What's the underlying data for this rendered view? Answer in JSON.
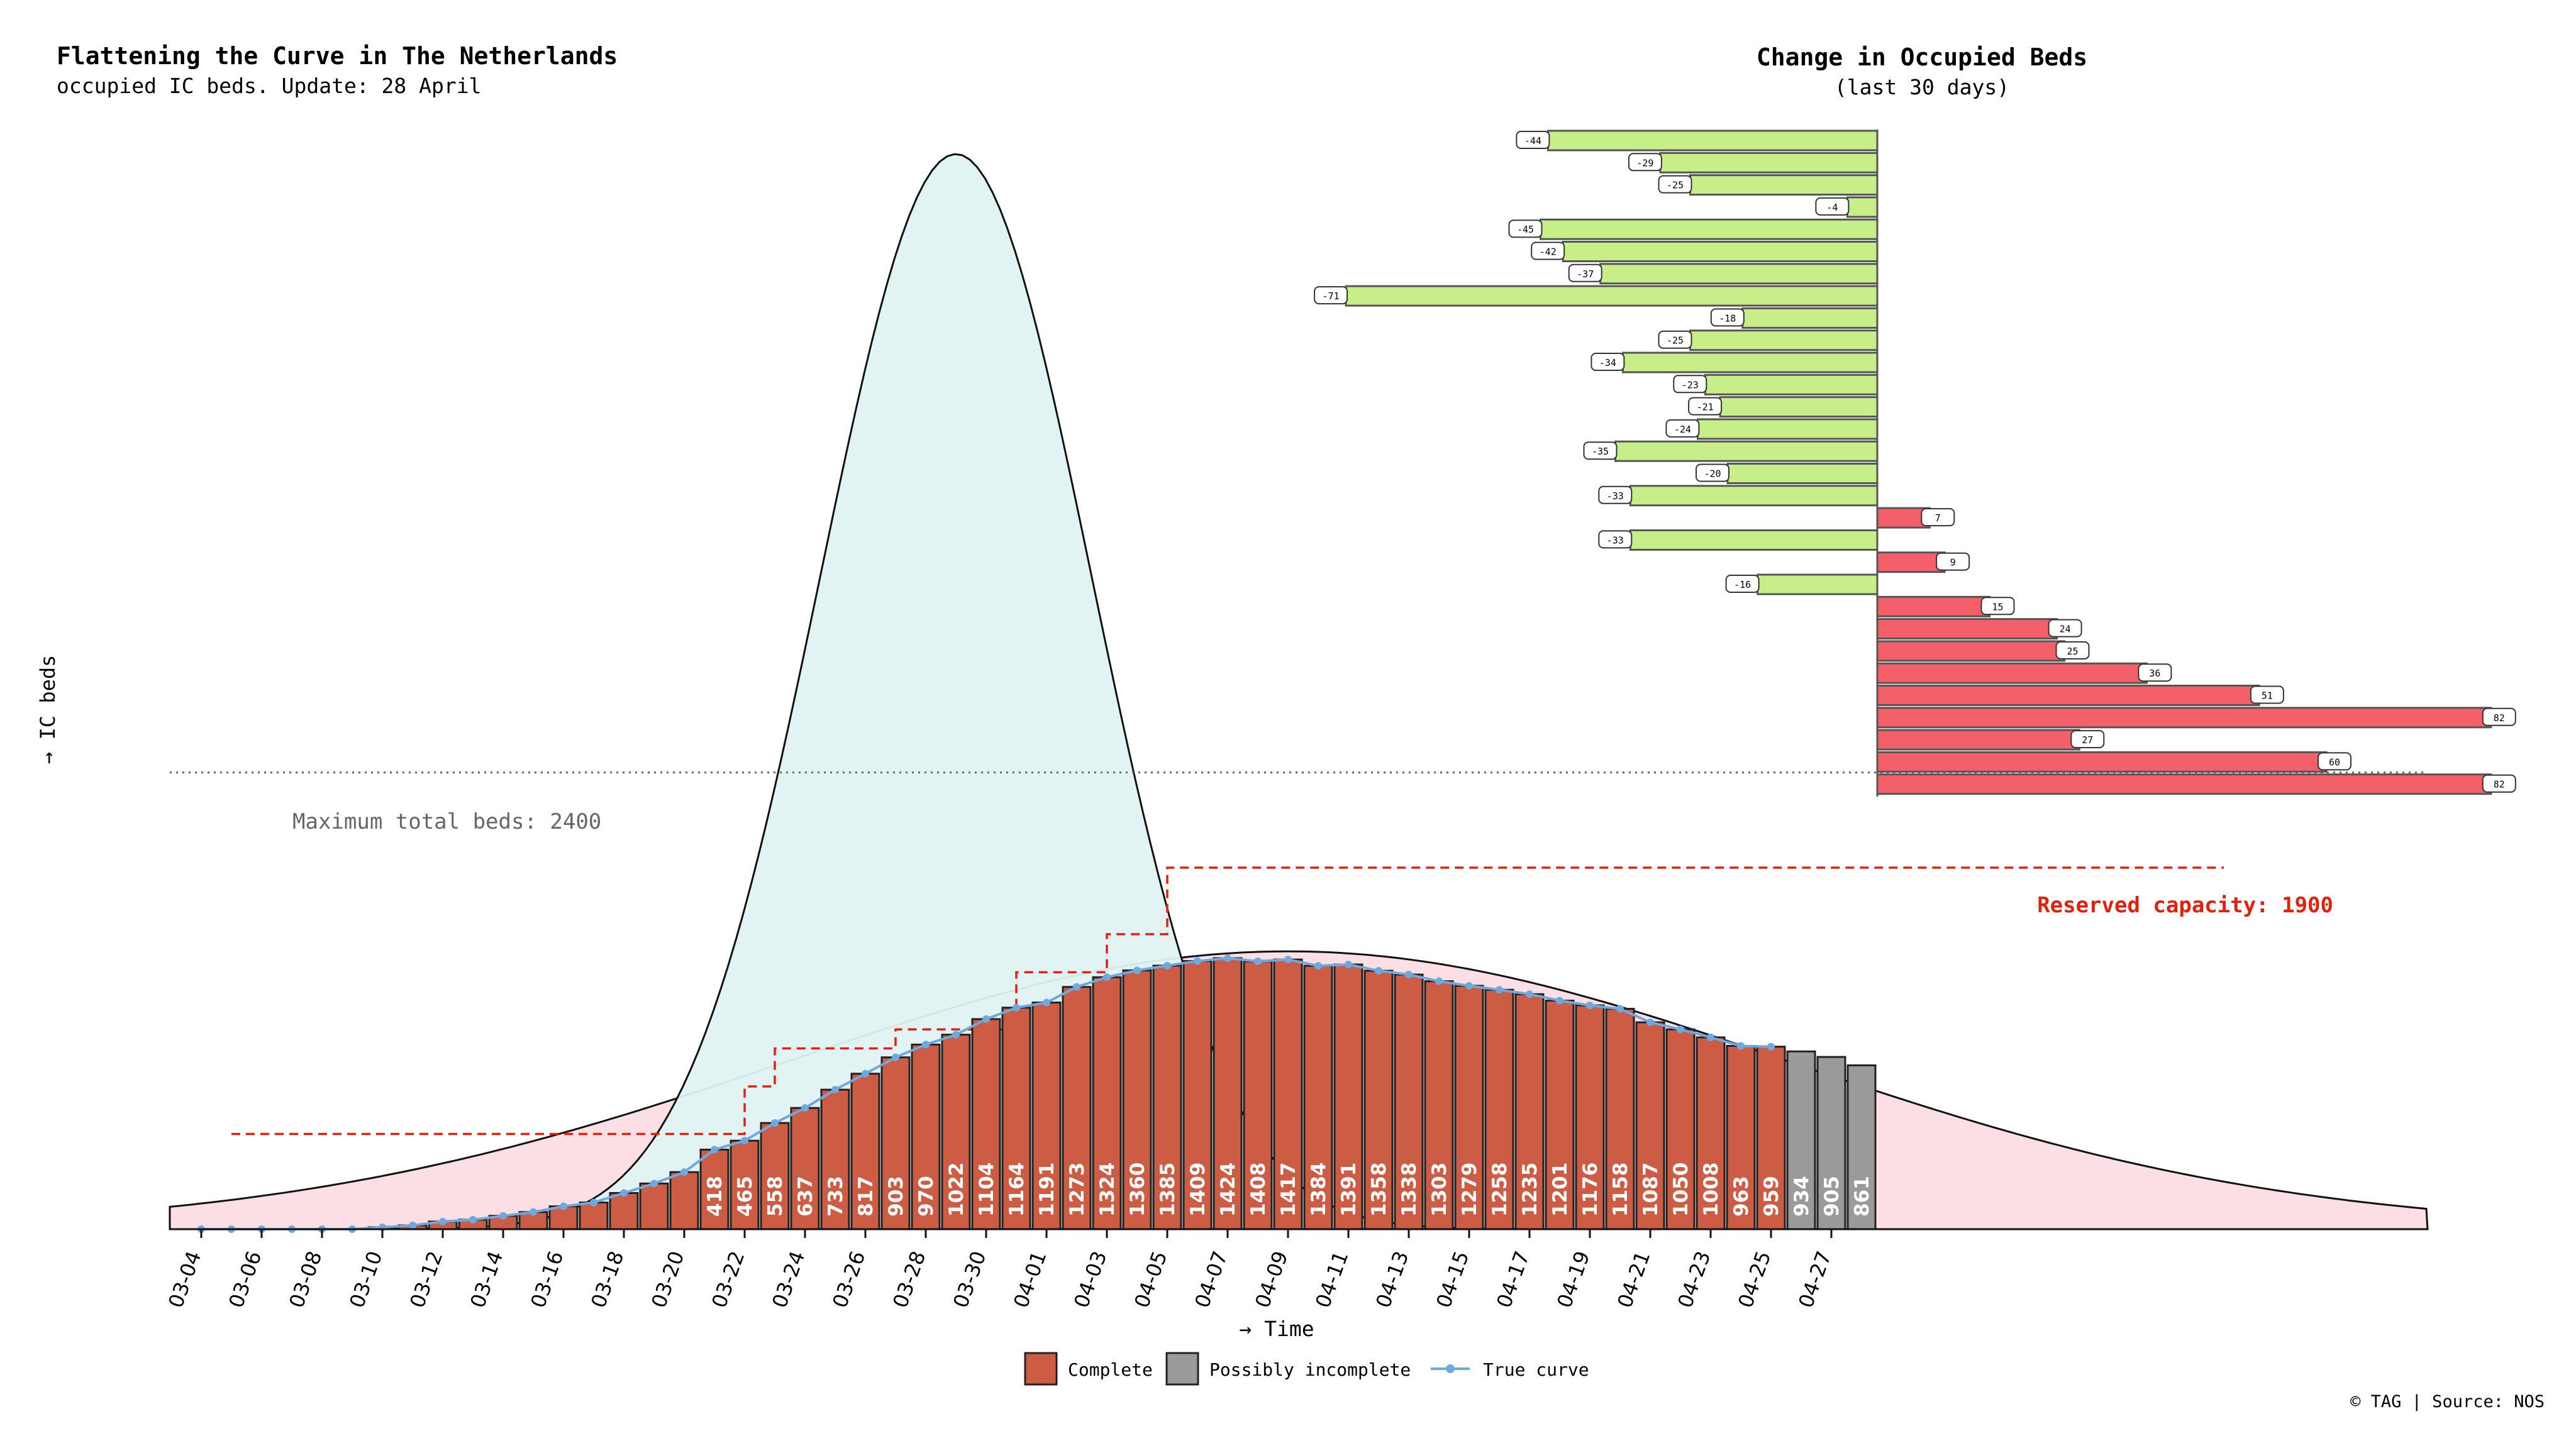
{
  "chart_data": [
    {
      "type": "bar",
      "title": "Flattening the Curve in The Netherlands",
      "subtitle": "occupied IC beds. Update: 28 April",
      "xlabel": "→ Time",
      "ylabel": "→ IC beds",
      "ylim": [
        0,
        5650
      ],
      "colors": {
        "complete": "#cd5c45",
        "incomplete": "#9a9a9a",
        "true_curve": "#6fa8dc",
        "tall_curve": "#dff3f2",
        "flat_curve": "#fcdfe4",
        "reserved": "#e0210f"
      },
      "max_beds_label": "Maximum total beds: 2400",
      "max_beds_value": 2400,
      "reserved_label": "Reserved capacity: 1900",
      "reserved_value": 1900,
      "legend": {
        "position": "bottom-center",
        "entries": [
          "Complete",
          "Possibly incomplete",
          "True curve"
        ]
      },
      "tick_labels": [
        "03-04",
        "03-06",
        "03-08",
        "03-10",
        "03-12",
        "03-14",
        "03-16",
        "03-18",
        "03-20",
        "03-22",
        "03-24",
        "03-26",
        "03-28",
        "03-30",
        "04-01",
        "04-03",
        "04-05",
        "04-07",
        "04-09",
        "04-11",
        "04-13",
        "04-15",
        "04-17",
        "04-19",
        "04-21",
        "04-23",
        "04-25",
        "04-27"
      ],
      "dates": [
        "03-04",
        "03-05",
        "03-06",
        "03-07",
        "03-08",
        "03-09",
        "03-10",
        "03-11",
        "03-12",
        "03-13",
        "03-14",
        "03-15",
        "03-16",
        "03-17",
        "03-18",
        "03-19",
        "03-20",
        "03-21",
        "03-22",
        "03-23",
        "03-24",
        "03-25",
        "03-26",
        "03-27",
        "03-28",
        "03-29",
        "03-30",
        "03-31",
        "04-01",
        "04-02",
        "04-03",
        "04-04",
        "04-05",
        "04-06",
        "04-07",
        "04-08",
        "04-09",
        "04-10",
        "04-11",
        "04-12",
        "04-13",
        "04-14",
        "04-15",
        "04-16",
        "04-17",
        "04-18",
        "04-19",
        "04-20",
        "04-21",
        "04-22",
        "04-23",
        "04-24",
        "04-25",
        "04-26",
        "04-27",
        "04-28"
      ],
      "values": [
        0,
        0,
        0,
        0,
        0,
        0,
        10,
        20,
        40,
        50,
        70,
        90,
        120,
        140,
        190,
        240,
        300,
        418,
        465,
        558,
        637,
        733,
        817,
        903,
        970,
        1022,
        1104,
        1164,
        1191,
        1273,
        1324,
        1360,
        1385,
        1409,
        1424,
        1408,
        1417,
        1384,
        1391,
        1358,
        1338,
        1303,
        1279,
        1258,
        1235,
        1201,
        1176,
        1158,
        1087,
        1050,
        1008,
        963,
        959,
        934,
        905,
        861
      ],
      "value_labels": [
        "",
        "",
        "",
        "",
        "",
        "",
        "",
        "",
        "",
        "",
        "",
        "",
        "",
        "",
        "",
        "",
        "",
        "418",
        "465",
        "558",
        "637",
        "733",
        "817",
        "903",
        "970",
        "1022",
        "1104",
        "1164",
        "1191",
        "1273",
        "1324",
        "1360",
        "1385",
        "1409",
        "1424",
        "1408",
        "1417",
        "1384",
        "1391",
        "1358",
        "1338",
        "1303",
        "1279",
        "1258",
        "1235",
        "1201",
        "1176",
        "1158",
        "1087",
        "1050",
        "1008",
        "963",
        "959",
        "934",
        "905",
        "861"
      ],
      "status": [
        "c",
        "c",
        "c",
        "c",
        "c",
        "c",
        "c",
        "c",
        "c",
        "c",
        "c",
        "c",
        "c",
        "c",
        "c",
        "c",
        "c",
        "c",
        "c",
        "c",
        "c",
        "c",
        "c",
        "c",
        "c",
        "c",
        "c",
        "c",
        "c",
        "c",
        "c",
        "c",
        "c",
        "c",
        "c",
        "c",
        "c",
        "c",
        "c",
        "c",
        "c",
        "c",
        "c",
        "c",
        "c",
        "c",
        "c",
        "c",
        "c",
        "c",
        "c",
        "c",
        "c",
        "i",
        "i",
        "i"
      ],
      "true_curve": [
        0,
        0,
        0,
        0,
        0,
        0,
        10,
        20,
        40,
        50,
        70,
        90,
        120,
        140,
        190,
        240,
        300,
        418,
        465,
        558,
        637,
        733,
        817,
        903,
        970,
        1022,
        1104,
        1164,
        1191,
        1273,
        1324,
        1360,
        1385,
        1409,
        1424,
        1408,
        1417,
        1384,
        1391,
        1358,
        1338,
        1303,
        1279,
        1258,
        1235,
        1201,
        1176,
        1158,
        1087,
        1050,
        1008,
        963,
        959
      ],
      "reserved_steps": [
        {
          "from": "03-05",
          "to": "03-22",
          "value": 500
        },
        {
          "from": "03-22",
          "to": "03-23",
          "value": 750
        },
        {
          "from": "03-23",
          "to": "03-27",
          "value": 950
        },
        {
          "from": "03-27",
          "to": "03-31",
          "value": 1050
        },
        {
          "from": "03-31",
          "to": "04-03",
          "value": 1350
        },
        {
          "from": "04-03",
          "to": "04-05",
          "value": 1550
        },
        {
          "from": "04-05",
          "to": "05-10",
          "value": 1900
        }
      ],
      "tall_curve": {
        "peak_date": "03-29",
        "peak": 5650,
        "sd_days": 4.5
      },
      "flat_curve": {
        "peak_date": "04-09",
        "peak": 1460,
        "sd_days": 16.5
      }
    },
    {
      "type": "bar",
      "orientation": "horizontal",
      "title": "Change in Occupied Beds",
      "subtitle": "(last 30 days)",
      "colors": {
        "negative": "#c8ee8a",
        "positive": "#f4606a"
      },
      "values": [
        -44,
        -29,
        -25,
        -4,
        -45,
        -42,
        -37,
        -71,
        -18,
        -25,
        -34,
        -23,
        -21,
        -24,
        -35,
        -20,
        -33,
        7,
        -33,
        9,
        -16,
        15,
        24,
        25,
        36,
        51,
        82,
        27,
        60,
        82
      ],
      "labels": [
        "-44",
        "-29",
        "-25",
        "-4",
        "-45",
        "-42",
        "-37",
        "-71",
        "-18",
        "-25",
        "-34",
        "-23",
        "-21",
        "-24",
        "-35",
        "-20",
        "-33",
        "7",
        "-33",
        "9",
        "-16",
        "15",
        "24",
        "25",
        "36",
        "51",
        "82",
        "27",
        "60",
        "82"
      ]
    }
  ],
  "footer": {
    "credit": "© TAG | Source: NOS"
  }
}
